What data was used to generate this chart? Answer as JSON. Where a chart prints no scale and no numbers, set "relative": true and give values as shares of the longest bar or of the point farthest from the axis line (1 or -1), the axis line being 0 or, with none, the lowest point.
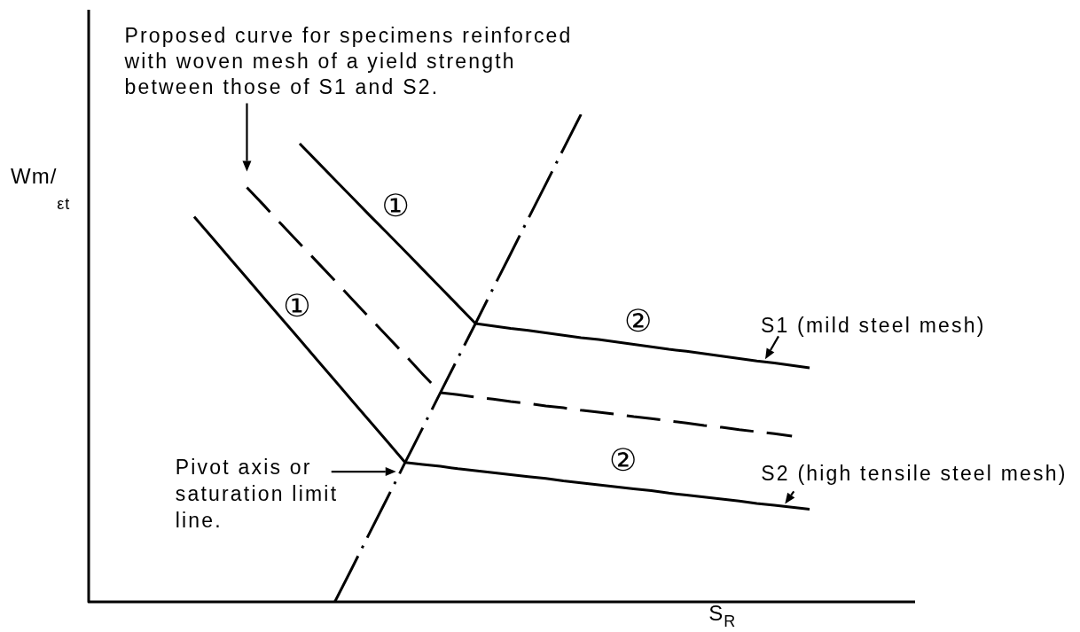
{
  "chart_data": {
    "type": "line",
    "relative": true,
    "xlabel": "S$_{R}$",
    "ylabel": "Wm/$_{εt}$",
    "categories": [
      null,
      null,
      null,
      null,
      null,
      null,
      null,
      null,
      null,
      null,
      null,
      null,
      null,
      null,
      null,
      null,
      null,
      null,
      null,
      null,
      null,
      null,
      null,
      null,
      null,
      null,
      null,
      null,
      null,
      null,
      null,
      null,
      null,
      null,
      null,
      null,
      null,
      null,
      null,
      null,
      null,
      null,
      null,
      null,
      null,
      null,
      null,
      null
    ],
    "series": [
      {
        "name": "S1 (mild steel mesh)",
        "color": "#000000",
        "values": [
          null,
          null,
          null,
          null,
          null,
          null,
          null,
          null,
          null,
          null,
          null,
          null,
          0.94,
          0.903,
          0.866,
          0.829,
          0.792,
          0.756,
          0.719,
          0.682,
          0.645,
          0.608,
          0.571,
          0.566,
          0.561,
          0.557,
          0.552,
          0.547,
          0.542,
          0.538,
          0.533,
          0.528,
          0.523,
          0.518,
          0.514,
          0.509,
          0.504,
          0.499,
          0.494,
          0.49,
          0.485,
          0.48,
          null,
          null,
          null,
          null,
          null,
          null
        ]
      },
      {
        "color": "#000000",
        "line_style": "dashed",
        "values": [
          null,
          null,
          null,
          null,
          null,
          null,
          null,
          null,
          null,
          0.85,
          0.812,
          0.773,
          0.735,
          0.697,
          0.659,
          0.62,
          0.582,
          0.544,
          0.506,
          0.467,
          0.429,
          0.425,
          0.42,
          0.416,
          0.411,
          0.407,
          0.402,
          0.398,
          0.393,
          0.389,
          0.385,
          0.38,
          0.376,
          0.371,
          0.367,
          0.362,
          0.358,
          0.353,
          0.349,
          0.345,
          0.34,
          null,
          null,
          null,
          null,
          null,
          null,
          null
        ]
      },
      {
        "name": "S2 (high tensile steel mesh)",
        "color": "#000000",
        "values": [
          null,
          null,
          null,
          null,
          null,
          null,
          0.79,
          0.748,
          0.706,
          0.664,
          0.622,
          0.58,
          0.538,
          0.496,
          0.454,
          0.412,
          0.37,
          0.328,
          0.286,
          0.282,
          0.278,
          0.273,
          0.269,
          0.265,
          0.261,
          0.257,
          0.253,
          0.248,
          0.244,
          0.24,
          0.236,
          0.232,
          0.228,
          0.223,
          0.219,
          0.215,
          0.211,
          0.207,
          0.202,
          0.198,
          0.194,
          0.19,
          null,
          null,
          null,
          null,
          null,
          null
        ]
      },
      {
        "color": "#000000",
        "line_style": "dashdot",
        "values": [
          null,
          null,
          null,
          null,
          null,
          null,
          null,
          null,
          null,
          null,
          null,
          null,
          null,
          null,
          0,
          0.071,
          0.143,
          0.214,
          0.286,
          0.357,
          0.429,
          0.5,
          0.571,
          0.643,
          0.714,
          0.786,
          0.857,
          0.929,
          1,
          null,
          null,
          null,
          null,
          null,
          null,
          null,
          null,
          null,
          null,
          null,
          null,
          null,
          null,
          null,
          null,
          null,
          null,
          null
        ]
      }
    ],
    "annotations": [
      "Proposed curve for specimens reinforced with woven mesh of a yield strength between those of S1 and S2.",
      "①",
      "①",
      "②",
      "Pivot axis or saturation limit line.",
      "②"
    ]
  }
}
